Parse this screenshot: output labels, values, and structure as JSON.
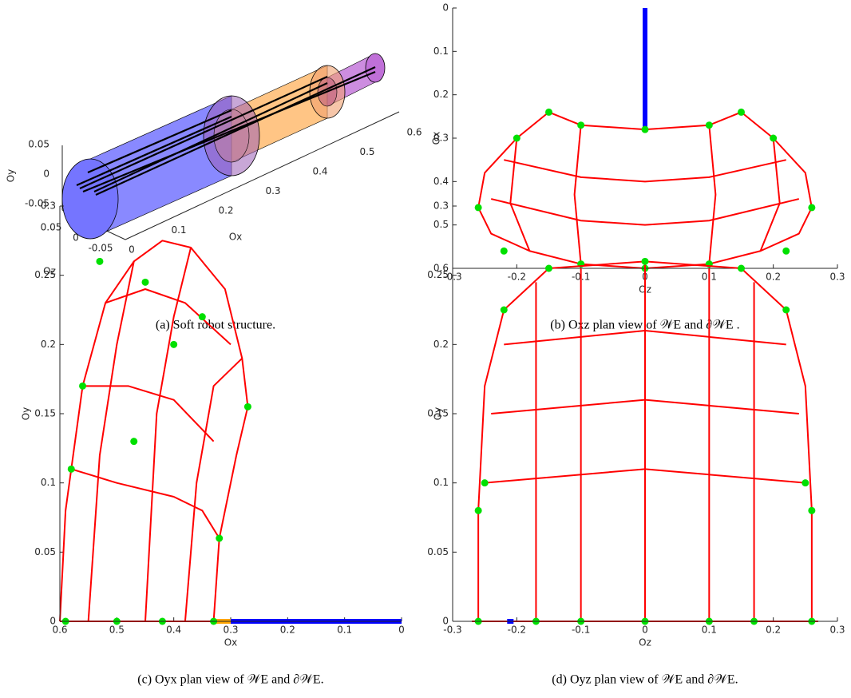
{
  "chart_data": [
    {
      "type": "3d",
      "caption": "(a) Soft robot structure.",
      "xlabel": "Ox",
      "ylabel": "Oy",
      "zlabel": "Oz",
      "xticks": [
        0,
        0.1,
        0.2,
        0.3,
        0.4,
        0.5,
        0.6
      ],
      "yticks": [
        -0.05,
        0,
        0.05
      ],
      "zticks": [
        -0.05,
        0,
        0.05
      ]
    },
    {
      "type": "line",
      "caption": "(b) Oxz plan view of 𝒲E and ∂𝒲E .",
      "xlabel": "Oz",
      "ylabel": "Ox",
      "xlim": [
        -0.3,
        0.3
      ],
      "xticks": [
        -0.3,
        -0.2,
        -0.1,
        0,
        0.1,
        0.2,
        0.3
      ],
      "ylim": [
        0.6,
        0
      ],
      "yticks": [
        0,
        0.1,
        0.2,
        0.3,
        0.4,
        0.5,
        0.6
      ],
      "series": [
        {
          "color": "#ff0000",
          "x": [
            -0.15,
            -0.2,
            -0.25,
            -0.26,
            -0.24,
            -0.18,
            -0.1,
            0,
            0.1,
            0.18,
            0.24,
            0.26,
            0.25,
            0.2,
            0.15
          ],
          "y": [
            0.24,
            0.3,
            0.38,
            0.46,
            0.52,
            0.56,
            0.59,
            0.6,
            0.59,
            0.56,
            0.52,
            0.46,
            0.38,
            0.3,
            0.24
          ]
        },
        {
          "color": "#ff0000",
          "x": [
            -0.15,
            -0.1,
            0,
            0.1,
            0.15
          ],
          "y": [
            0.24,
            0.27,
            0.28,
            0.27,
            0.24
          ]
        },
        {
          "color": "#ff0000",
          "x": [
            -0.22,
            -0.1,
            0,
            0.1,
            0.22
          ],
          "y": [
            0.35,
            0.39,
            0.4,
            0.39,
            0.35
          ]
        },
        {
          "color": "#ff0000",
          "x": [
            -0.24,
            -0.1,
            0,
            0.1,
            0.24
          ],
          "y": [
            0.44,
            0.49,
            0.5,
            0.49,
            0.44
          ]
        },
        {
          "color": "#ff0000",
          "x": [
            -0.1,
            -0.11,
            -0.1
          ],
          "y": [
            0.27,
            0.43,
            0.59
          ]
        },
        {
          "color": "#ff0000",
          "x": [
            0.1,
            0.11,
            0.1
          ],
          "y": [
            0.27,
            0.43,
            0.59
          ]
        },
        {
          "color": "#ff0000",
          "x": [
            -0.2,
            -0.21,
            -0.18
          ],
          "y": [
            0.3,
            0.45,
            0.56
          ]
        },
        {
          "color": "#ff0000",
          "x": [
            0.2,
            0.21,
            0.18
          ],
          "y": [
            0.3,
            0.45,
            0.56
          ]
        },
        {
          "color": "#0000ff",
          "x": [
            0,
            0
          ],
          "y": [
            0,
            0.28
          ]
        },
        {
          "color": "#00e000",
          "marker": "o",
          "x": [
            -0.26,
            -0.15,
            0,
            0.15,
            0.26,
            -0.2,
            0.2,
            -0.1,
            0.1,
            0,
            -0.22,
            0.22,
            -0.1,
            0.1
          ],
          "y": [
            0.46,
            0.24,
            0.28,
            0.24,
            0.46,
            0.3,
            0.3,
            0.59,
            0.59,
            0.6,
            0.56,
            0.56,
            0.27,
            0.27
          ]
        }
      ]
    },
    {
      "type": "line",
      "caption": "(c) Oyx plan view of 𝒲E and ∂𝒲E.",
      "xlabel": "Ox",
      "ylabel": "Oy",
      "xlim": [
        0.6,
        0
      ],
      "xticks": [
        0.6,
        0.5,
        0.4,
        0.3,
        0.2,
        0.1,
        0
      ],
      "ylim": [
        0,
        0.3
      ],
      "yticks": [
        0,
        0.05,
        0.1,
        0.15,
        0.2,
        0.25,
        0.3
      ],
      "series": [
        {
          "color": "#ff0000",
          "x": [
            0.6,
            0.59,
            0.56,
            0.52,
            0.47,
            0.42,
            0.37,
            0.31,
            0.28,
            0.27,
            0.29,
            0.32,
            0.33
          ],
          "y": [
            0,
            0.08,
            0.17,
            0.23,
            0.26,
            0.275,
            0.27,
            0.24,
            0.19,
            0.155,
            0.12,
            0.06,
            0
          ]
        },
        {
          "color": "#ff0000",
          "x": [
            0.58,
            0.5,
            0.4,
            0.35,
            0.32
          ],
          "y": [
            0.11,
            0.1,
            0.09,
            0.08,
            0.06
          ]
        },
        {
          "color": "#ff0000",
          "x": [
            0.56,
            0.48,
            0.4,
            0.33
          ],
          "y": [
            0.17,
            0.17,
            0.16,
            0.13
          ]
        },
        {
          "color": "#ff0000",
          "x": [
            0.52,
            0.45,
            0.38,
            0.3
          ],
          "y": [
            0.23,
            0.24,
            0.23,
            0.2
          ]
        },
        {
          "color": "#ff0000",
          "x": [
            0.55,
            0.53,
            0.5,
            0.47
          ],
          "y": [
            0,
            0.12,
            0.2,
            0.26
          ]
        },
        {
          "color": "#ff0000",
          "x": [
            0.45,
            0.43,
            0.4,
            0.37
          ],
          "y": [
            0,
            0.15,
            0.22,
            0.27
          ]
        },
        {
          "color": "#ff0000",
          "x": [
            0.38,
            0.36,
            0.33,
            0.28
          ],
          "y": [
            0,
            0.1,
            0.17,
            0.19
          ]
        },
        {
          "color": "#ff0000",
          "x": [
            0.6,
            0.33
          ],
          "y": [
            0,
            0
          ]
        },
        {
          "color": "#ffa500",
          "x": [
            0.33,
            0.3
          ],
          "y": [
            0,
            0
          ]
        },
        {
          "color": "#0000ff",
          "x": [
            0.3,
            0
          ],
          "y": [
            0,
            0
          ]
        },
        {
          "color": "#00e000",
          "marker": "o",
          "x": [
            0.53,
            0.45,
            0.27,
            0.58,
            0.56,
            0.32,
            0.35,
            0.59,
            0.5,
            0.42,
            0.33,
            0.47,
            0.4
          ],
          "y": [
            0.26,
            0.245,
            0.155,
            0.11,
            0.17,
            0.06,
            0.22,
            0,
            0,
            0,
            0,
            0.13,
            0.2
          ]
        }
      ]
    },
    {
      "type": "line",
      "caption": "(d) Oyz plan view of 𝒲E and ∂𝒲E.",
      "xlabel": "Oz",
      "ylabel": "Oy",
      "xlim": [
        -0.3,
        0.3
      ],
      "xticks": [
        -0.3,
        -0.2,
        -0.1,
        0,
        0.1,
        0.2,
        0.3
      ],
      "ylim": [
        0,
        0.3
      ],
      "yticks": [
        0,
        0.05,
        0.1,
        0.15,
        0.2,
        0.25,
        0.3
      ],
      "series": [
        {
          "color": "#ff0000",
          "x": [
            -0.26,
            -0.26,
            -0.25,
            -0.22,
            -0.15,
            0,
            0.15,
            0.22,
            0.25,
            0.26,
            0.26
          ],
          "y": [
            0,
            0.08,
            0.17,
            0.225,
            0.255,
            0.26,
            0.255,
            0.225,
            0.17,
            0.08,
            0
          ]
        },
        {
          "color": "#ff0000",
          "x": [
            -0.22,
            0,
            0.22
          ],
          "y": [
            0.2,
            0.21,
            0.2
          ]
        },
        {
          "color": "#ff0000",
          "x": [
            -0.24,
            0,
            0.24
          ],
          "y": [
            0.15,
            0.16,
            0.15
          ]
        },
        {
          "color": "#ff0000",
          "x": [
            -0.25,
            0,
            0.25
          ],
          "y": [
            0.1,
            0.11,
            0.1
          ]
        },
        {
          "color": "#ff0000",
          "x": [
            -0.17,
            -0.17
          ],
          "y": [
            0,
            0.245
          ]
        },
        {
          "color": "#ff0000",
          "x": [
            -0.1,
            -0.1
          ],
          "y": [
            0,
            0.255
          ]
        },
        {
          "color": "#ff0000",
          "x": [
            0,
            0
          ],
          "y": [
            0,
            0.26
          ]
        },
        {
          "color": "#ff0000",
          "x": [
            0.1,
            0.1
          ],
          "y": [
            0,
            0.255
          ]
        },
        {
          "color": "#ff0000",
          "x": [
            0.17,
            0.17
          ],
          "y": [
            0,
            0.245
          ]
        },
        {
          "color": "#ff0000",
          "x": [
            -0.27,
            0.27
          ],
          "y": [
            0,
            0
          ]
        },
        {
          "color": "#0000ff",
          "x": [
            -0.215,
            -0.205
          ],
          "y": [
            0,
            0
          ]
        },
        {
          "color": "#00e000",
          "marker": "o",
          "x": [
            -0.26,
            -0.15,
            0,
            0.15,
            0.26,
            -0.22,
            0.22,
            -0.17,
            0.17,
            -0.1,
            0.1,
            0,
            -0.25,
            0.25,
            -0.26,
            0.26
          ],
          "y": [
            0.08,
            0.255,
            0.26,
            0.255,
            0.08,
            0.225,
            0.225,
            0,
            0,
            0,
            0,
            0,
            0.1,
            0.1,
            0,
            0
          ]
        }
      ]
    }
  ]
}
